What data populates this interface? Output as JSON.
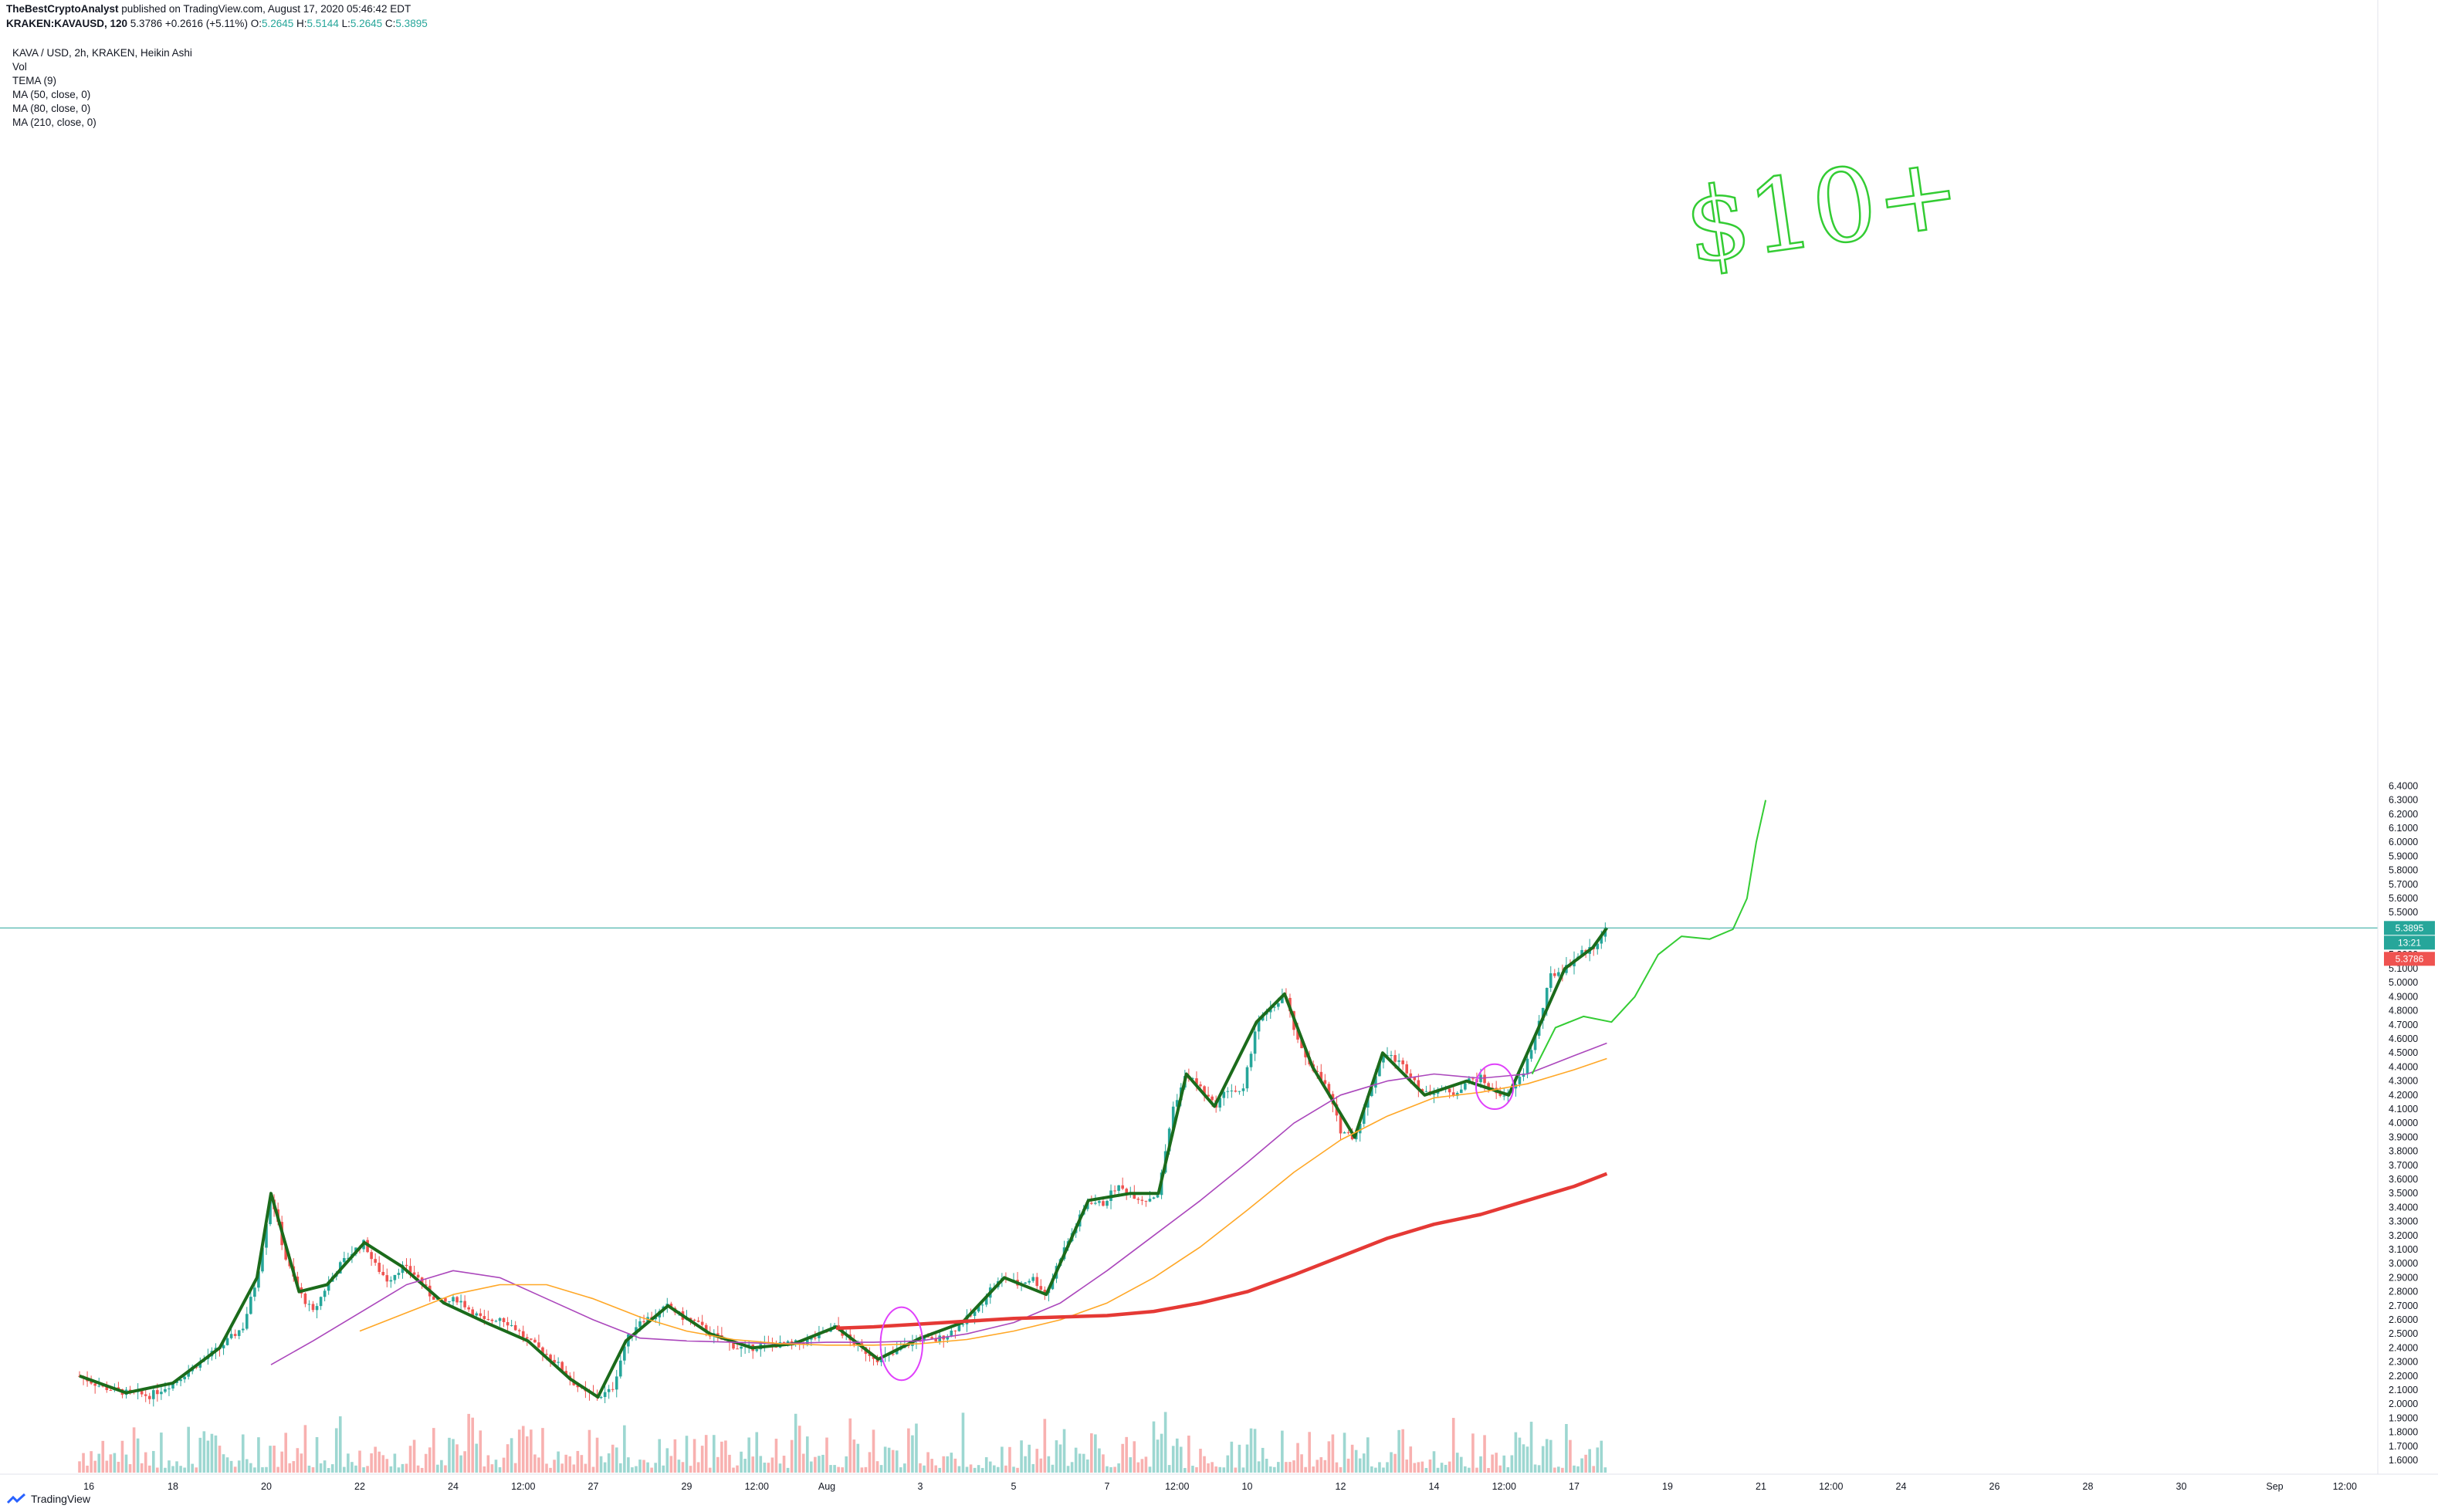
{
  "header": {
    "author": "TheBestCryptoAnalyst",
    "published": "published on TradingView.com, August 17, 2020 05:46:42 EDT",
    "symbol": "KRAKEN:KAVAUSD, 120",
    "price": "5.3786",
    "change": "+0.2616 (+5.11%)",
    "o_label": "O:",
    "o": "5.2645",
    "h_label": "H:",
    "h": "5.5144",
    "l_label": "L:",
    "l": "5.2645",
    "c_label": "C:",
    "c": "5.3895"
  },
  "legend": {
    "title": "KAVA / USD, 2h, KRAKEN, Heikin Ashi",
    "vol": "Vol",
    "tema": "TEMA (9)",
    "ma50": "MA (50, close, 0)",
    "ma80": "MA (80, close, 0)",
    "ma210": "MA (210, close, 0)"
  },
  "price_tags": {
    "last_close": "5.3895",
    "countdown": "13:21",
    "current": "5.3786"
  },
  "annotation": {
    "text": "$10+"
  },
  "branding": {
    "logo": "TradingView"
  },
  "colors": {
    "up": "#26a69a",
    "down": "#ef5350",
    "tema": "#1b6b1b",
    "ma50": "#ab47bc",
    "ma80": "#ffa726",
    "ma210": "#e53935",
    "drawing": "#33cc33",
    "ellipse": "#e040fb"
  },
  "chart_data": {
    "type": "candlestick",
    "style": "Heikin Ashi",
    "timeframe": "2h",
    "symbol": "KAVA / USD",
    "exchange": "KRAKEN",
    "ylim": [
      1.55,
      6.45
    ],
    "y_ticks": [
      1.6,
      1.7,
      1.8,
      1.9,
      2.0,
      2.1,
      2.2,
      2.3,
      2.4,
      2.5,
      2.6,
      2.7,
      2.8,
      2.9,
      3.0,
      3.1,
      3.2,
      3.3,
      3.4,
      3.5,
      3.6,
      3.7,
      3.8,
      3.9,
      4.0,
      4.1,
      4.2,
      4.3,
      4.4,
      4.5,
      4.6,
      4.7,
      4.8,
      4.9,
      5.0,
      5.1,
      5.2,
      5.3,
      5.4,
      5.5,
      5.6,
      5.7,
      5.8,
      5.9,
      6.0,
      6.1,
      6.2,
      6.3,
      6.4
    ],
    "x_ticks": [
      {
        "label": "16",
        "day": 0.2
      },
      {
        "label": "18",
        "day": 2
      },
      {
        "label": "20",
        "day": 4
      },
      {
        "label": "22",
        "day": 6
      },
      {
        "label": "24",
        "day": 8
      },
      {
        "label": "12:00",
        "day": 9.5
      },
      {
        "label": "27",
        "day": 11
      },
      {
        "label": "29",
        "day": 13
      },
      {
        "label": "12:00",
        "day": 14.5
      },
      {
        "label": "Aug",
        "day": 16
      },
      {
        "label": "3",
        "day": 18
      },
      {
        "label": "5",
        "day": 20
      },
      {
        "label": "7",
        "day": 22
      },
      {
        "label": "12:00",
        "day": 23.5
      },
      {
        "label": "10",
        "day": 25
      },
      {
        "label": "12",
        "day": 27
      },
      {
        "label": "14",
        "day": 29
      },
      {
        "label": "12:00",
        "day": 30.5
      },
      {
        "label": "17",
        "day": 32
      },
      {
        "label": "19",
        "day": 34
      },
      {
        "label": "21",
        "day": 36
      },
      {
        "label": "12:00",
        "day": 37.5
      },
      {
        "label": "24",
        "day": 39
      },
      {
        "label": "26",
        "day": 41
      },
      {
        "label": "28",
        "day": 43
      },
      {
        "label": "30",
        "day": 45
      },
      {
        "label": "Sep",
        "day": 47
      },
      {
        "label": "12:00",
        "day": 48.5
      }
    ],
    "close_path": [
      [
        0,
        2.2
      ],
      [
        0.5,
        2.12
      ],
      [
        1,
        2.08
      ],
      [
        1.5,
        2.06
      ],
      [
        2,
        2.15
      ],
      [
        2.5,
        2.28
      ],
      [
        3,
        2.4
      ],
      [
        3.5,
        2.55
      ],
      [
        3.8,
        2.9
      ],
      [
        4.1,
        3.5
      ],
      [
        4.4,
        3.05
      ],
      [
        4.7,
        2.8
      ],
      [
        5,
        2.65
      ],
      [
        5.3,
        2.85
      ],
      [
        5.6,
        3.0
      ],
      [
        5.9,
        3.1
      ],
      [
        6.1,
        3.15
      ],
      [
        6.3,
        3.0
      ],
      [
        6.6,
        2.88
      ],
      [
        6.9,
        2.98
      ],
      [
        7.2,
        2.92
      ],
      [
        7.5,
        2.78
      ],
      [
        7.8,
        2.72
      ],
      [
        8.1,
        2.75
      ],
      [
        8.4,
        2.66
      ],
      [
        8.7,
        2.58
      ],
      [
        9,
        2.62
      ],
      [
        9.3,
        2.55
      ],
      [
        9.6,
        2.45
      ],
      [
        9.9,
        2.38
      ],
      [
        10.2,
        2.3
      ],
      [
        10.5,
        2.18
      ],
      [
        10.8,
        2.08
      ],
      [
        11.1,
        2.05
      ],
      [
        11.4,
        2.1
      ],
      [
        11.7,
        2.45
      ],
      [
        12,
        2.6
      ],
      [
        12.3,
        2.62
      ],
      [
        12.6,
        2.7
      ],
      [
        12.9,
        2.62
      ],
      [
        13.2,
        2.58
      ],
      [
        13.5,
        2.5
      ],
      [
        13.8,
        2.45
      ],
      [
        14.1,
        2.4
      ],
      [
        14.4,
        2.4
      ],
      [
        14.7,
        2.43
      ],
      [
        15,
        2.42
      ],
      [
        15.3,
        2.43
      ],
      [
        15.6,
        2.45
      ],
      [
        15.9,
        2.5
      ],
      [
        16.2,
        2.55
      ],
      [
        16.5,
        2.45
      ],
      [
        16.8,
        2.38
      ],
      [
        17.1,
        2.32
      ],
      [
        17.4,
        2.35
      ],
      [
        17.7,
        2.42
      ],
      [
        18,
        2.47
      ],
      [
        18.3,
        2.45
      ],
      [
        18.6,
        2.5
      ],
      [
        18.9,
        2.58
      ],
      [
        19.2,
        2.66
      ],
      [
        19.5,
        2.82
      ],
      [
        19.8,
        2.9
      ],
      [
        20.1,
        2.85
      ],
      [
        20.4,
        2.9
      ],
      [
        20.7,
        2.78
      ],
      [
        21,
        3.05
      ],
      [
        21.3,
        3.25
      ],
      [
        21.6,
        3.45
      ],
      [
        21.9,
        3.42
      ],
      [
        22.2,
        3.55
      ],
      [
        22.5,
        3.5
      ],
      [
        22.8,
        3.45
      ],
      [
        23.1,
        3.5
      ],
      [
        23.4,
        4.1
      ],
      [
        23.7,
        4.35
      ],
      [
        24,
        4.25
      ],
      [
        24.3,
        4.12
      ],
      [
        24.6,
        4.25
      ],
      [
        24.9,
        4.2
      ],
      [
        25.2,
        4.72
      ],
      [
        25.5,
        4.8
      ],
      [
        25.8,
        4.92
      ],
      [
        26.1,
        4.55
      ],
      [
        26.4,
        4.4
      ],
      [
        26.7,
        4.25
      ],
      [
        27,
        3.95
      ],
      [
        27.3,
        3.9
      ],
      [
        27.6,
        4.2
      ],
      [
        27.9,
        4.5
      ],
      [
        28.2,
        4.45
      ],
      [
        28.5,
        4.35
      ],
      [
        28.8,
        4.2
      ],
      [
        29.1,
        4.25
      ],
      [
        29.4,
        4.2
      ],
      [
        29.7,
        4.3
      ],
      [
        30,
        4.32
      ],
      [
        30.3,
        4.22
      ],
      [
        30.6,
        4.2
      ],
      [
        30.9,
        4.35
      ],
      [
        31.2,
        4.65
      ],
      [
        31.5,
        5.05
      ],
      [
        31.8,
        5.1
      ],
      [
        32.1,
        5.2
      ],
      [
        32.4,
        5.25
      ],
      [
        32.7,
        5.39
      ]
    ],
    "series": [
      {
        "name": "TEMA (9)",
        "values": [
          [
            0,
            2.2
          ],
          [
            1,
            2.08
          ],
          [
            2,
            2.15
          ],
          [
            3,
            2.4
          ],
          [
            3.8,
            2.9
          ],
          [
            4.1,
            3.5
          ],
          [
            4.7,
            2.8
          ],
          [
            5.3,
            2.85
          ],
          [
            6.1,
            3.15
          ],
          [
            6.9,
            2.98
          ],
          [
            7.8,
            2.72
          ],
          [
            8.7,
            2.58
          ],
          [
            9.6,
            2.45
          ],
          [
            10.5,
            2.18
          ],
          [
            11.1,
            2.05
          ],
          [
            11.7,
            2.45
          ],
          [
            12.6,
            2.7
          ],
          [
            13.5,
            2.5
          ],
          [
            14.4,
            2.4
          ],
          [
            15.3,
            2.43
          ],
          [
            16.2,
            2.55
          ],
          [
            17.1,
            2.32
          ],
          [
            18,
            2.47
          ],
          [
            18.9,
            2.58
          ],
          [
            19.8,
            2.9
          ],
          [
            20.7,
            2.78
          ],
          [
            21.6,
            3.45
          ],
          [
            22.5,
            3.5
          ],
          [
            23.1,
            3.5
          ],
          [
            23.7,
            4.35
          ],
          [
            24.3,
            4.12
          ],
          [
            25.2,
            4.72
          ],
          [
            25.8,
            4.92
          ],
          [
            26.4,
            4.4
          ],
          [
            27.3,
            3.9
          ],
          [
            27.9,
            4.5
          ],
          [
            28.8,
            4.2
          ],
          [
            29.7,
            4.3
          ],
          [
            30.6,
            4.2
          ],
          [
            31.2,
            4.65
          ],
          [
            31.8,
            5.1
          ],
          [
            32.4,
            5.25
          ],
          [
            32.7,
            5.39
          ]
        ]
      },
      {
        "name": "MA (50, close, 0)",
        "values": [
          [
            4.1,
            2.28
          ],
          [
            5,
            2.45
          ],
          [
            6,
            2.65
          ],
          [
            7,
            2.85
          ],
          [
            8,
            2.95
          ],
          [
            9,
            2.9
          ],
          [
            10,
            2.75
          ],
          [
            11,
            2.6
          ],
          [
            12,
            2.47
          ],
          [
            13,
            2.45
          ],
          [
            14,
            2.44
          ],
          [
            15,
            2.43
          ],
          [
            16,
            2.44
          ],
          [
            17,
            2.44
          ],
          [
            18,
            2.45
          ],
          [
            19,
            2.5
          ],
          [
            20,
            2.58
          ],
          [
            21,
            2.72
          ],
          [
            22,
            2.95
          ],
          [
            23,
            3.2
          ],
          [
            24,
            3.45
          ],
          [
            25,
            3.72
          ],
          [
            26,
            4.0
          ],
          [
            27,
            4.2
          ],
          [
            28,
            4.3
          ],
          [
            29,
            4.35
          ],
          [
            30,
            4.32
          ],
          [
            31,
            4.35
          ],
          [
            32,
            4.48
          ],
          [
            32.7,
            4.57
          ]
        ]
      },
      {
        "name": "MA (80, close, 0)",
        "values": [
          [
            6,
            2.52
          ],
          [
            7,
            2.65
          ],
          [
            8,
            2.78
          ],
          [
            9,
            2.85
          ],
          [
            10,
            2.85
          ],
          [
            11,
            2.75
          ],
          [
            12,
            2.62
          ],
          [
            13,
            2.52
          ],
          [
            14,
            2.46
          ],
          [
            15,
            2.43
          ],
          [
            16,
            2.42
          ],
          [
            17,
            2.42
          ],
          [
            18,
            2.43
          ],
          [
            19,
            2.46
          ],
          [
            20,
            2.52
          ],
          [
            21,
            2.6
          ],
          [
            22,
            2.72
          ],
          [
            23,
            2.9
          ],
          [
            24,
            3.12
          ],
          [
            25,
            3.38
          ],
          [
            26,
            3.65
          ],
          [
            27,
            3.88
          ],
          [
            28,
            4.05
          ],
          [
            29,
            4.18
          ],
          [
            30,
            4.22
          ],
          [
            31,
            4.28
          ],
          [
            32,
            4.38
          ],
          [
            32.7,
            4.46
          ]
        ]
      },
      {
        "name": "MA (210, close, 0)",
        "values": [
          [
            16.2,
            2.54
          ],
          [
            17,
            2.55
          ],
          [
            18,
            2.57
          ],
          [
            19,
            2.59
          ],
          [
            20,
            2.61
          ],
          [
            21,
            2.62
          ],
          [
            22,
            2.63
          ],
          [
            23,
            2.66
          ],
          [
            24,
            2.72
          ],
          [
            25,
            2.8
          ],
          [
            26,
            2.92
          ],
          [
            27,
            3.05
          ],
          [
            28,
            3.18
          ],
          [
            29,
            3.28
          ],
          [
            30,
            3.35
          ],
          [
            31,
            3.45
          ],
          [
            32,
            3.55
          ],
          [
            32.7,
            3.64
          ]
        ]
      }
    ],
    "drawings": {
      "projection_path": [
        [
          31.1,
          4.35
        ],
        [
          31.6,
          4.68
        ],
        [
          32.2,
          4.76
        ],
        [
          32.8,
          4.72
        ],
        [
          33.3,
          4.9
        ],
        [
          33.8,
          5.2
        ],
        [
          34.3,
          5.33
        ],
        [
          34.9,
          5.31
        ],
        [
          35.4,
          5.38
        ],
        [
          35.7,
          5.6
        ],
        [
          35.9,
          6.0
        ],
        [
          36.1,
          6.3
        ]
      ],
      "ellipses": [
        {
          "center_day": 17.6,
          "center_price": 2.43,
          "half_width_days": 0.45,
          "half_height_price": 0.26
        },
        {
          "center_day": 30.3,
          "center_price": 4.26,
          "half_width_days": 0.4,
          "half_height_price": 0.16
        }
      ]
    },
    "volume": "bars"
  }
}
